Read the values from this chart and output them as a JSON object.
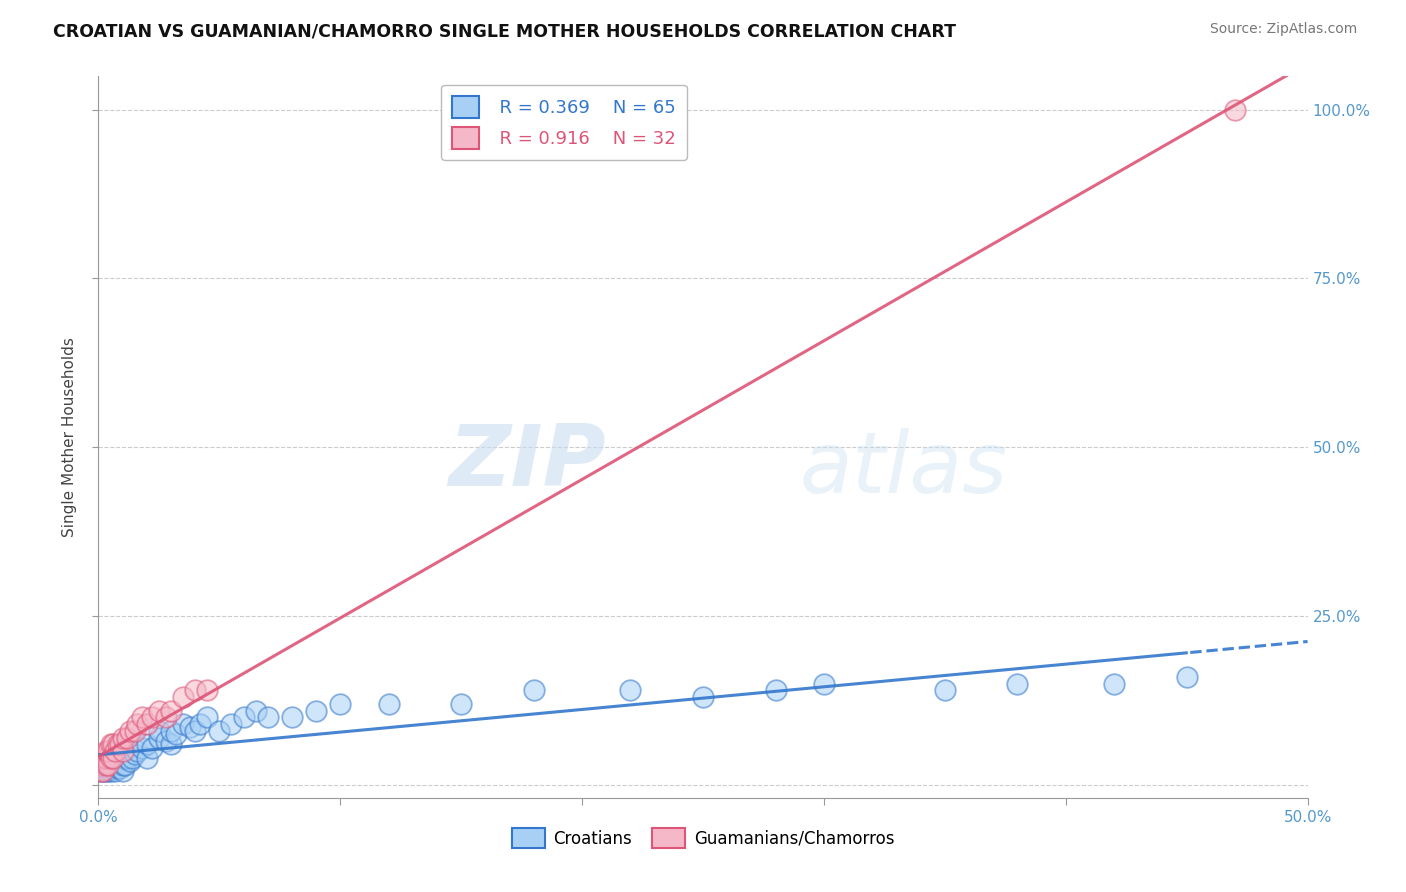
{
  "title": "CROATIAN VS GUAMANIAN/CHAMORRO SINGLE MOTHER HOUSEHOLDS CORRELATION CHART",
  "source": "Source: ZipAtlas.com",
  "ylabel": "Single Mother Households",
  "xlim": [
    0.0,
    0.5
  ],
  "ylim": [
    -0.02,
    1.05
  ],
  "xticks": [
    0.0,
    0.1,
    0.2,
    0.3,
    0.4,
    0.5
  ],
  "xticklabels": [
    "0.0%",
    "",
    "",
    "",
    "",
    "50.0%"
  ],
  "yticks": [
    0.0,
    0.25,
    0.5,
    0.75,
    1.0
  ],
  "yticklabels": [
    "",
    "25.0%",
    "50.0%",
    "75.0%",
    "100.0%"
  ],
  "legend_R_blue": "R = 0.369",
  "legend_N_blue": "N = 65",
  "legend_R_pink": "R = 0.916",
  "legend_N_pink": "N = 32",
  "blue_color": "#a8d0f5",
  "pink_color": "#f5b8c8",
  "blue_line_color": "#3377cc",
  "pink_line_color": "#dd5577",
  "watermark_ZIP": "ZIP",
  "watermark_atlas": "atlas",
  "background_color": "#ffffff",
  "grid_color": "#cccccc",
  "legend_label_blue": "Croatians",
  "legend_label_pink": "Guamanians/Chamorros",
  "croatian_x": [
    0.001,
    0.001,
    0.001,
    0.002,
    0.002,
    0.002,
    0.002,
    0.003,
    0.003,
    0.003,
    0.004,
    0.004,
    0.005,
    0.005,
    0.005,
    0.006,
    0.006,
    0.007,
    0.007,
    0.008,
    0.008,
    0.009,
    0.01,
    0.01,
    0.01,
    0.011,
    0.012,
    0.013,
    0.014,
    0.015,
    0.016,
    0.018,
    0.02,
    0.02,
    0.022,
    0.025,
    0.025,
    0.028,
    0.03,
    0.03,
    0.032,
    0.035,
    0.038,
    0.04,
    0.042,
    0.045,
    0.05,
    0.055,
    0.06,
    0.065,
    0.07,
    0.08,
    0.09,
    0.1,
    0.12,
    0.15,
    0.18,
    0.22,
    0.28,
    0.35,
    0.38,
    0.42,
    0.45,
    0.3,
    0.25
  ],
  "croatian_y": [
    0.02,
    0.025,
    0.03,
    0.02,
    0.025,
    0.03,
    0.035,
    0.02,
    0.025,
    0.03,
    0.02,
    0.03,
    0.02,
    0.025,
    0.03,
    0.025,
    0.035,
    0.02,
    0.03,
    0.025,
    0.035,
    0.025,
    0.02,
    0.03,
    0.04,
    0.03,
    0.04,
    0.035,
    0.04,
    0.045,
    0.05,
    0.055,
    0.04,
    0.06,
    0.055,
    0.07,
    0.08,
    0.065,
    0.06,
    0.08,
    0.075,
    0.09,
    0.085,
    0.08,
    0.09,
    0.1,
    0.08,
    0.09,
    0.1,
    0.11,
    0.1,
    0.1,
    0.11,
    0.12,
    0.12,
    0.12,
    0.14,
    0.14,
    0.14,
    0.14,
    0.15,
    0.15,
    0.16,
    0.15,
    0.13
  ],
  "guam_x": [
    0.001,
    0.001,
    0.002,
    0.002,
    0.003,
    0.003,
    0.003,
    0.004,
    0.004,
    0.005,
    0.005,
    0.006,
    0.006,
    0.007,
    0.008,
    0.009,
    0.01,
    0.01,
    0.012,
    0.013,
    0.015,
    0.016,
    0.018,
    0.02,
    0.022,
    0.025,
    0.028,
    0.03,
    0.035,
    0.04,
    0.045,
    0.47
  ],
  "guam_y": [
    0.02,
    0.03,
    0.02,
    0.04,
    0.03,
    0.04,
    0.05,
    0.03,
    0.05,
    0.04,
    0.06,
    0.04,
    0.06,
    0.05,
    0.06,
    0.06,
    0.05,
    0.07,
    0.07,
    0.08,
    0.08,
    0.09,
    0.1,
    0.09,
    0.1,
    0.11,
    0.1,
    0.11,
    0.13,
    0.14,
    0.14,
    1.0
  ]
}
